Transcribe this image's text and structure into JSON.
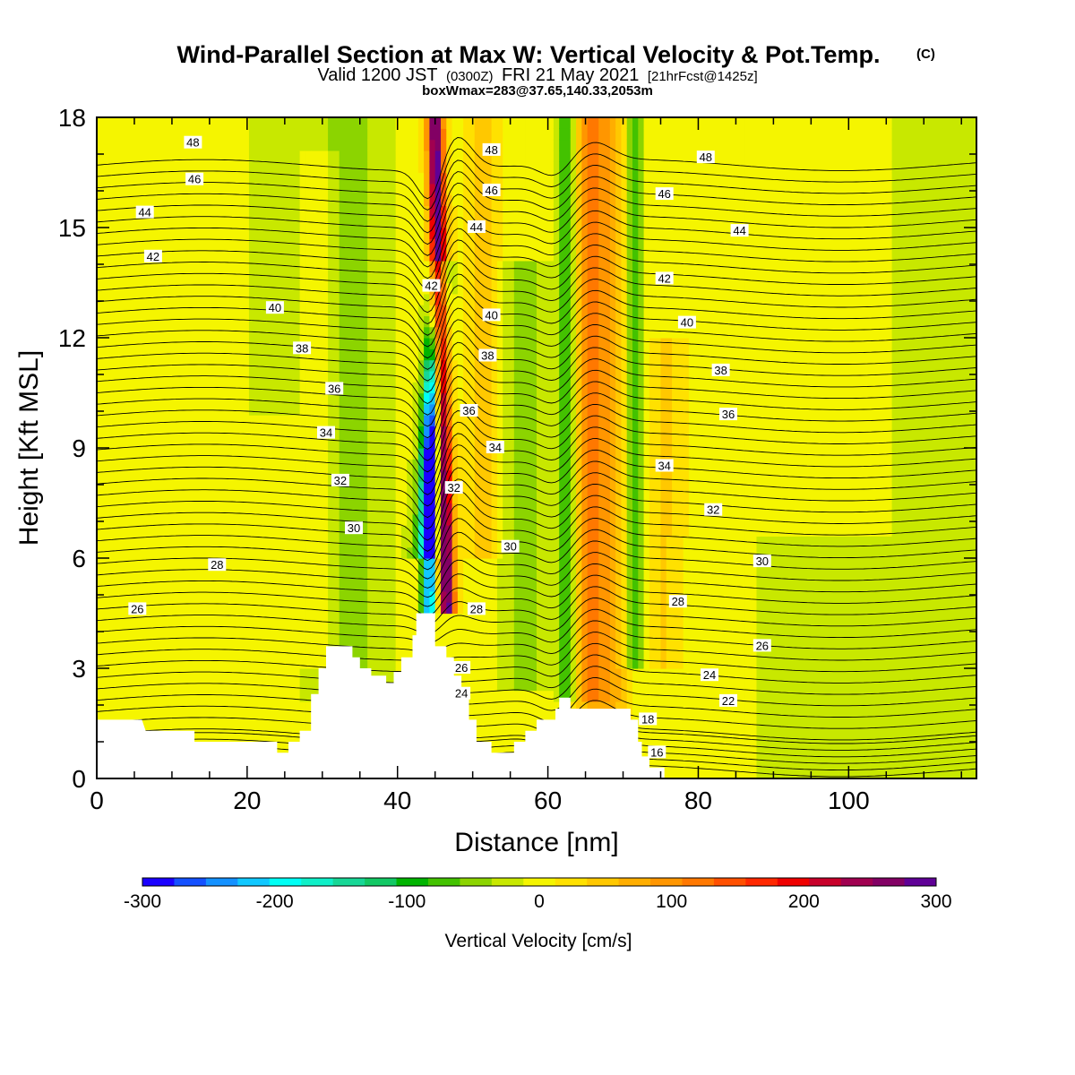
{
  "header": {
    "title": "Wind-Parallel Section at Max W: Vertical Velocity & Pot.Temp.",
    "copyright": "(C)",
    "valid_prefix": "Valid 1200 JST",
    "valid_utc": "(0300Z)",
    "valid_date": "FRI 21 May 2021",
    "forecast": "[21hrFcst@1425z]",
    "boxinfo": "boxWmax=283@37.65,140.33,2053m"
  },
  "chart_data": {
    "type": "heatmap",
    "xlabel": "Distance [nm]",
    "ylabel": "Height [Kft MSL]",
    "xlim": [
      0,
      117
    ],
    "ylim": [
      0,
      18
    ],
    "x_ticks": [
      "0",
      "20",
      "40",
      "60",
      "80",
      "100"
    ],
    "x_tick_values": [
      0,
      20,
      40,
      60,
      80,
      100
    ],
    "y_ticks": [
      "0",
      "3",
      "6",
      "9",
      "12",
      "15",
      "18"
    ],
    "y_tick_values": [
      0,
      3,
      6,
      9,
      12,
      15,
      18
    ],
    "colorbar": {
      "label": "Vertical Velocity [cm/s]",
      "range": [
        -300,
        300
      ],
      "tick_labels": [
        "-300",
        "-200",
        "-100",
        "0",
        "100",
        "200",
        "300"
      ],
      "tick_values": [
        -300,
        -200,
        -100,
        0,
        100,
        200,
        300
      ],
      "colors": [
        "#1a00ff",
        "#1450ff",
        "#1491ff",
        "#11c8ff",
        "#00fff5",
        "#0ff0c8",
        "#17d796",
        "#12c864",
        "#00b400",
        "#43c200",
        "#8cd400",
        "#c8e800",
        "#f5f500",
        "#ffe100",
        "#ffc800",
        "#ffae00",
        "#ff9600",
        "#ff7800",
        "#ff5000",
        "#ff2800",
        "#ef0000",
        "#c8002a",
        "#a00050",
        "#820064",
        "#5f0096"
      ]
    },
    "velocity_features": [
      {
        "name": "downdraft",
        "x": 44.5,
        "w": -250,
        "from_kft": 4.5,
        "to_kft": 13
      },
      {
        "name": "updraft",
        "x": 46.5,
        "w": 280,
        "from_kft": 4.5,
        "to_kft": 18
      },
      {
        "name": "updraft-east",
        "x": 65,
        "w": 110,
        "from_kft": 2,
        "to_kft": 18
      },
      {
        "name": "downdraft-east",
        "x": 62,
        "w": -90,
        "from_kft": 2,
        "to_kft": 18
      }
    ],
    "terrain_kft": [
      {
        "x": 0,
        "h": 1.6
      },
      {
        "x": 6,
        "h": 1.6
      },
      {
        "x": 6.5,
        "h": 1.3
      },
      {
        "x": 13,
        "h": 1.3
      },
      {
        "x": 13,
        "h": 1.0
      },
      {
        "x": 24,
        "h": 1.0
      },
      {
        "x": 24,
        "h": 0.7
      },
      {
        "x": 25.5,
        "h": 0.7
      },
      {
        "x": 25.5,
        "h": 1.0
      },
      {
        "x": 27,
        "h": 1.0
      },
      {
        "x": 27,
        "h": 1.3
      },
      {
        "x": 28.5,
        "h": 1.3
      },
      {
        "x": 28.5,
        "h": 2.3
      },
      {
        "x": 29.5,
        "h": 2.3
      },
      {
        "x": 29.5,
        "h": 3.0
      },
      {
        "x": 30.5,
        "h": 3.0
      },
      {
        "x": 30.5,
        "h": 3.6
      },
      {
        "x": 34,
        "h": 3.6
      },
      {
        "x": 34,
        "h": 3.3
      },
      {
        "x": 35,
        "h": 3.3
      },
      {
        "x": 35,
        "h": 3.0
      },
      {
        "x": 36.5,
        "h": 3.0
      },
      {
        "x": 36.5,
        "h": 2.8
      },
      {
        "x": 38.5,
        "h": 2.8
      },
      {
        "x": 38.5,
        "h": 2.6
      },
      {
        "x": 39.5,
        "h": 2.6
      },
      {
        "x": 39.5,
        "h": 2.9
      },
      {
        "x": 40.5,
        "h": 2.9
      },
      {
        "x": 40.5,
        "h": 3.3
      },
      {
        "x": 42,
        "h": 3.3
      },
      {
        "x": 42,
        "h": 3.9
      },
      {
        "x": 42.5,
        "h": 3.9
      },
      {
        "x": 42.5,
        "h": 4.5
      },
      {
        "x": 45,
        "h": 4.5
      },
      {
        "x": 45,
        "h": 3.6
      },
      {
        "x": 46.5,
        "h": 3.6
      },
      {
        "x": 46.5,
        "h": 3.3
      },
      {
        "x": 47.5,
        "h": 3.3
      },
      {
        "x": 47.5,
        "h": 2.8
      },
      {
        "x": 48.5,
        "h": 2.8
      },
      {
        "x": 48.5,
        "h": 2.3
      },
      {
        "x": 49.5,
        "h": 2.3
      },
      {
        "x": 49.5,
        "h": 1.6
      },
      {
        "x": 50.5,
        "h": 1.6
      },
      {
        "x": 50.5,
        "h": 1.0
      },
      {
        "x": 52.5,
        "h": 1.0
      },
      {
        "x": 52.5,
        "h": 0.7
      },
      {
        "x": 55.5,
        "h": 0.7
      },
      {
        "x": 55.5,
        "h": 1.0
      },
      {
        "x": 57,
        "h": 1.0
      },
      {
        "x": 57,
        "h": 1.3
      },
      {
        "x": 58.5,
        "h": 1.3
      },
      {
        "x": 58.5,
        "h": 1.6
      },
      {
        "x": 61,
        "h": 1.6
      },
      {
        "x": 61,
        "h": 1.9
      },
      {
        "x": 61.5,
        "h": 1.9
      },
      {
        "x": 61.5,
        "h": 2.2
      },
      {
        "x": 63,
        "h": 2.2
      },
      {
        "x": 63,
        "h": 1.9
      },
      {
        "x": 71,
        "h": 1.9
      },
      {
        "x": 71,
        "h": 1.6
      },
      {
        "x": 72,
        "h": 1.6
      },
      {
        "x": 72,
        "h": 1.0
      },
      {
        "x": 72.5,
        "h": 1.0
      },
      {
        "x": 72.5,
        "h": 0.6
      },
      {
        "x": 73.5,
        "h": 0.6
      },
      {
        "x": 73.5,
        "h": 0.3
      },
      {
        "x": 75.5,
        "h": 0.3
      },
      {
        "x": 75.5,
        "h": 0.0
      }
    ],
    "contour_labels": [
      {
        "text": "48",
        "x": 12.8,
        "y": 17.3
      },
      {
        "text": "48",
        "x": 52.5,
        "y": 17.1
      },
      {
        "text": "48",
        "x": 81,
        "y": 16.9
      },
      {
        "text": "46",
        "x": 13,
        "y": 16.3
      },
      {
        "text": "46",
        "x": 52.5,
        "y": 16.0
      },
      {
        "text": "46",
        "x": 75.5,
        "y": 15.9
      },
      {
        "text": "44",
        "x": 6.4,
        "y": 15.4
      },
      {
        "text": "44",
        "x": 50.5,
        "y": 15.0
      },
      {
        "text": "44",
        "x": 85.5,
        "y": 14.9
      },
      {
        "text": "42",
        "x": 7.5,
        "y": 14.2
      },
      {
        "text": "42",
        "x": 44.5,
        "y": 13.4
      },
      {
        "text": "42",
        "x": 75.5,
        "y": 13.6
      },
      {
        "text": "40",
        "x": 23.7,
        "y": 12.8
      },
      {
        "text": "40",
        "x": 52.5,
        "y": 12.6
      },
      {
        "text": "40",
        "x": 78.5,
        "y": 12.4
      },
      {
        "text": "38",
        "x": 27.3,
        "y": 11.7
      },
      {
        "text": "38",
        "x": 52,
        "y": 11.5
      },
      {
        "text": "38",
        "x": 83,
        "y": 11.1
      },
      {
        "text": "36",
        "x": 31.6,
        "y": 10.6
      },
      {
        "text": "36",
        "x": 49.5,
        "y": 10.0
      },
      {
        "text": "36",
        "x": 84,
        "y": 9.9
      },
      {
        "text": "34",
        "x": 30.5,
        "y": 9.4
      },
      {
        "text": "34",
        "x": 53,
        "y": 9.0
      },
      {
        "text": "34",
        "x": 75.5,
        "y": 8.5
      },
      {
        "text": "32",
        "x": 32.4,
        "y": 8.1
      },
      {
        "text": "32",
        "x": 47.5,
        "y": 7.9
      },
      {
        "text": "32",
        "x": 82,
        "y": 7.3
      },
      {
        "text": "30",
        "x": 34.2,
        "y": 6.8
      },
      {
        "text": "30",
        "x": 55,
        "y": 6.3
      },
      {
        "text": "30",
        "x": 88.5,
        "y": 5.9
      },
      {
        "text": "28",
        "x": 16,
        "y": 5.8
      },
      {
        "text": "28",
        "x": 50.5,
        "y": 4.6
      },
      {
        "text": "28",
        "x": 77.3,
        "y": 4.8
      },
      {
        "text": "26",
        "x": 5.4,
        "y": 4.6
      },
      {
        "text": "26",
        "x": 48.5,
        "y": 3.0
      },
      {
        "text": "26",
        "x": 88.5,
        "y": 3.6
      },
      {
        "text": "24",
        "x": 48.5,
        "y": 2.3
      },
      {
        "text": "24",
        "x": 81.5,
        "y": 2.8
      },
      {
        "text": "22",
        "x": 84,
        "y": 2.1
      },
      {
        "text": "18",
        "x": 73.3,
        "y": 1.6
      },
      {
        "text": "16",
        "x": 74.5,
        "y": 0.7
      }
    ]
  }
}
